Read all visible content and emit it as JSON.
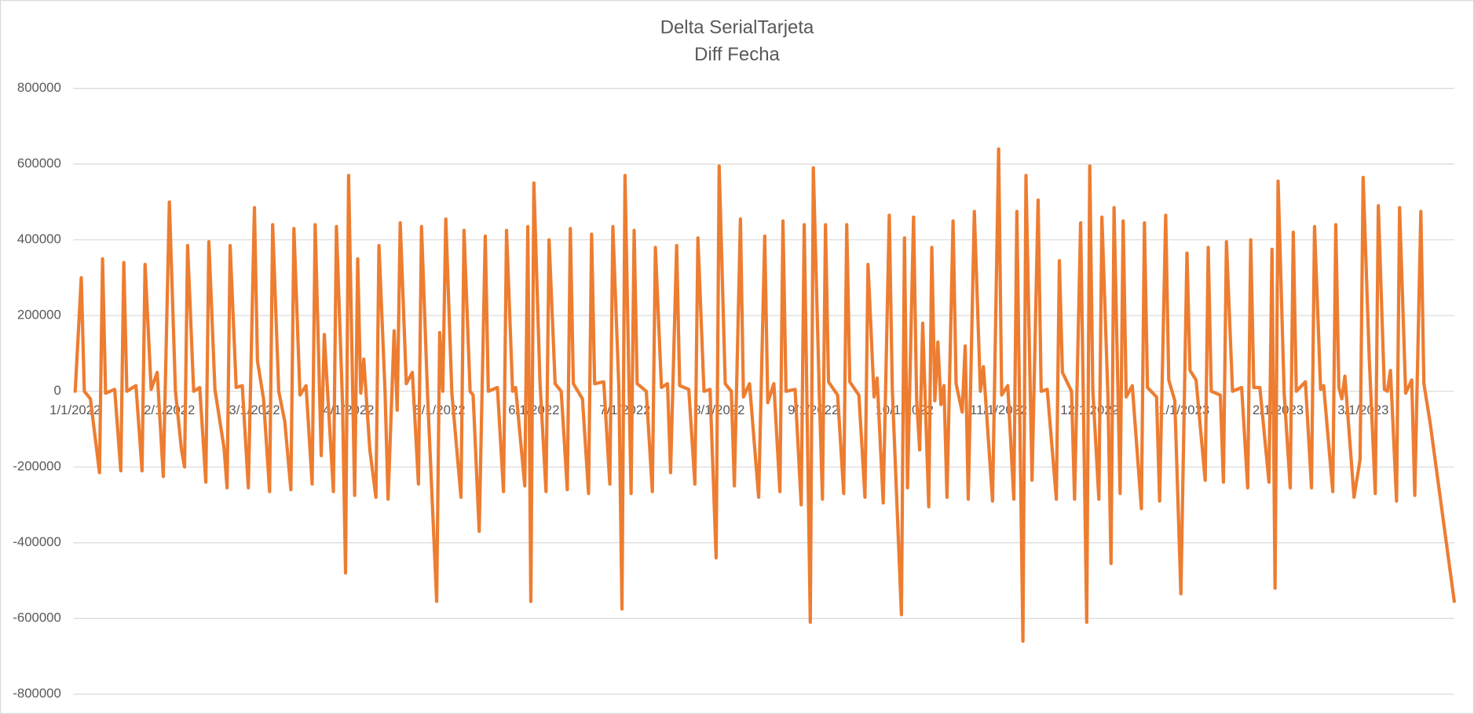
{
  "chart_data": {
    "type": "line",
    "title": "Delta SerialTarjeta",
    "subtitle": "Diff Fecha",
    "xlim": [
      0,
      454
    ],
    "xticks": [
      {
        "value": 0,
        "label": "1/1/2022"
      },
      {
        "value": 31,
        "label": "2/1/2022"
      },
      {
        "value": 59,
        "label": "3/1/2022"
      },
      {
        "value": 90,
        "label": "4/1/2022"
      },
      {
        "value": 120,
        "label": "5/1/2022"
      },
      {
        "value": 151,
        "label": "6/1/2022"
      },
      {
        "value": 181,
        "label": "7/1/2022"
      },
      {
        "value": 212,
        "label": "8/1/2022"
      },
      {
        "value": 243,
        "label": "9/1/2022"
      },
      {
        "value": 273,
        "label": "10/1/2022"
      },
      {
        "value": 304,
        "label": "11/1/2022"
      },
      {
        "value": 334,
        "label": "12/1/2022"
      },
      {
        "value": 365,
        "label": "1/1/2023"
      },
      {
        "value": 396,
        "label": "2/1/2023"
      },
      {
        "value": 424,
        "label": "3/1/2023"
      }
    ],
    "ylim": [
      -800000,
      800000
    ],
    "yticks": [
      -800000,
      -600000,
      -400000,
      -200000,
      0,
      200000,
      400000,
      600000,
      800000
    ],
    "grid": true,
    "series": [
      {
        "color": "#ed7d31",
        "x": [
          0,
          2,
          3,
          5,
          8,
          9,
          10,
          13,
          15,
          16,
          17,
          20,
          22,
          23,
          25,
          27,
          29,
          31,
          33,
          35,
          36,
          37,
          39,
          41,
          43,
          44,
          46,
          49,
          50,
          51,
          53,
          55,
          57,
          59,
          60,
          62,
          64,
          65,
          67,
          69,
          71,
          72,
          74,
          76,
          78,
          79,
          81,
          82,
          85,
          86,
          88,
          89,
          90,
          92,
          93,
          94,
          95,
          97,
          99,
          100,
          102,
          103,
          105,
          106,
          107,
          109,
          111,
          113,
          114,
          116,
          119,
          120,
          121,
          122,
          124,
          127,
          128,
          130,
          131,
          133,
          135,
          136,
          139,
          141,
          142,
          144,
          145,
          148,
          149,
          150,
          151,
          153,
          155,
          156,
          158,
          160,
          162,
          163,
          164,
          167,
          169,
          170,
          171,
          174,
          176,
          177,
          179,
          180,
          181,
          183,
          184,
          185,
          188,
          190,
          191,
          193,
          195,
          196,
          198,
          199,
          202,
          204,
          205,
          207,
          209,
          211,
          212,
          214,
          216,
          217,
          219,
          220,
          222,
          225,
          227,
          228,
          230,
          232,
          233,
          234,
          237,
          239,
          240,
          242,
          243,
          245,
          246,
          247,
          248,
          251,
          253,
          254,
          255,
          258,
          260,
          261,
          263,
          264,
          266,
          268,
          269,
          272,
          273,
          274,
          276,
          277,
          278,
          279,
          281,
          282,
          283,
          284,
          285,
          286,
          287,
          289,
          290,
          292,
          293,
          294,
          296,
          298,
          299,
          302,
          304,
          305,
          307,
          309,
          310,
          312,
          313,
          315,
          317,
          318,
          320,
          323,
          324,
          325,
          328,
          329,
          331,
          333,
          334,
          335,
          337,
          338,
          340,
          341,
          342,
          344,
          345,
          346,
          348,
          351,
          352,
          353,
          356,
          357,
          359,
          360,
          362,
          364,
          366,
          367,
          369,
          372,
          373,
          374,
          377,
          378,
          379,
          381,
          384,
          386,
          387,
          388,
          390,
          393,
          394,
          395,
          396,
          398,
          400,
          401,
          402,
          405,
          407,
          408,
          410,
          411,
          414,
          415,
          416,
          417,
          418,
          421,
          423,
          424,
          426,
          428,
          429,
          431,
          432,
          433,
          435,
          436,
          438,
          440,
          441,
          443,
          444,
          446,
          454
        ],
        "values": [
          0,
          300000,
          0,
          -20000,
          -215000,
          350000,
          -5000,
          5000,
          -210000,
          340000,
          0,
          15000,
          -210000,
          335000,
          5000,
          50000,
          -225000,
          500000,
          0,
          -155000,
          -200000,
          385000,
          0,
          10000,
          -240000,
          395000,
          5000,
          -150000,
          -255000,
          385000,
          10000,
          15000,
          -255000,
          485000,
          80000,
          -20000,
          -265000,
          440000,
          0,
          -80000,
          -260000,
          430000,
          -10000,
          15000,
          -245000,
          440000,
          -170000,
          150000,
          -265000,
          435000,
          -30000,
          -480000,
          570000,
          -275000,
          350000,
          -5000,
          85000,
          -155000,
          -280000,
          385000,
          0,
          -285000,
          160000,
          -50000,
          445000,
          20000,
          50000,
          -245000,
          435000,
          -10000,
          -555000,
          155000,
          0,
          455000,
          -5000,
          -280000,
          425000,
          0,
          -10000,
          -370000,
          410000,
          0,
          10000,
          -265000,
          425000,
          0,
          10000,
          -250000,
          435000,
          -555000,
          550000,
          25000,
          -265000,
          400000,
          20000,
          0,
          -260000,
          430000,
          20000,
          -20000,
          -270000,
          415000,
          20000,
          25000,
          -245000,
          435000,
          5000,
          -575000,
          570000,
          -270000,
          425000,
          20000,
          0,
          -265000,
          380000,
          10000,
          20000,
          -215000,
          385000,
          15000,
          5000,
          -245000,
          405000,
          0,
          5000,
          -440000,
          595000,
          20000,
          0,
          -250000,
          455000,
          -15000,
          20000,
          -280000,
          410000,
          -30000,
          20000,
          -265000,
          450000,
          0,
          5000,
          -300000,
          440000,
          -610000,
          590000,
          -15000,
          -285000,
          440000,
          25000,
          -10000,
          -270000,
          440000,
          25000,
          -10000,
          -280000,
          335000,
          -15000,
          35000,
          -295000,
          465000,
          5000,
          -590000,
          405000,
          -255000,
          460000,
          -20000,
          -155000,
          180000,
          -305000,
          380000,
          -25000,
          130000,
          -35000,
          15000,
          -280000,
          450000,
          20000,
          -55000,
          120000,
          -285000,
          475000,
          0,
          65000,
          -290000,
          640000,
          -10000,
          15000,
          -285000,
          475000,
          -660000,
          570000,
          -235000,
          505000,
          0,
          5000,
          -285000,
          345000,
          50000,
          0,
          -285000,
          445000,
          -610000,
          595000,
          5000,
          -285000,
          460000,
          -15000,
          -455000,
          485000,
          -270000,
          450000,
          -15000,
          15000,
          -310000,
          445000,
          10000,
          -15000,
          -290000,
          465000,
          30000,
          -25000,
          -535000,
          365000,
          55000,
          30000,
          -235000,
          380000,
          0,
          -10000,
          -240000,
          395000,
          0,
          10000,
          -255000,
          400000,
          10000,
          10000,
          -240000,
          375000,
          -520000,
          555000,
          -5000,
          -255000,
          420000,
          0,
          25000,
          -255000,
          435000,
          5000,
          15000,
          -265000,
          440000,
          10000,
          -20000,
          40000,
          -280000,
          -180000,
          565000,
          90000,
          -270000,
          490000,
          5000,
          0,
          55000,
          -290000,
          485000,
          -5000,
          30000,
          -275000,
          475000,
          20000,
          -80000,
          -555000
        ]
      }
    ]
  }
}
